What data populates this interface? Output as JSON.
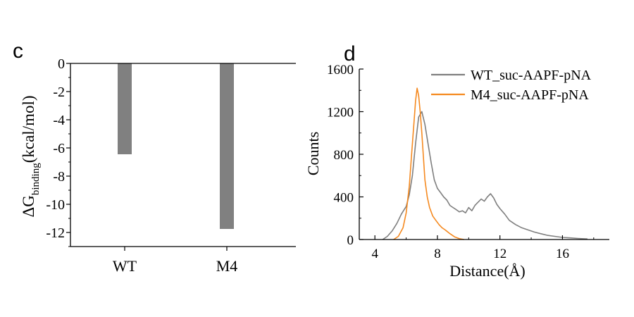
{
  "chart_data": [
    {
      "panel_label": "c",
      "type": "bar",
      "categories": [
        "WT",
        "M4"
      ],
      "values": [
        -6.45,
        -11.75
      ],
      "ylabel_main": "ΔG",
      "ylabel_sub": "binding",
      "ylabel_unit": "(kcal/mol)",
      "ylim": [
        -13,
        0
      ],
      "yticks": [
        0,
        -2,
        -4,
        -6,
        -8,
        -10,
        -12
      ],
      "ytick_labels": [
        "0",
        "-2",
        "-4",
        "-6",
        "-8",
        "-10",
        "-12"
      ],
      "bar_color": "#808080",
      "grid": false
    },
    {
      "panel_label": "d",
      "type": "line",
      "xlabel": "Distance(Å)",
      "ylabel": "Counts",
      "xlim": [
        3,
        19
      ],
      "ylim": [
        0,
        1600
      ],
      "xticks": [
        4,
        8,
        12,
        16
      ],
      "xtick_labels": [
        "4",
        "8",
        "12",
        "16"
      ],
      "yticks": [
        0,
        400,
        800,
        1200,
        1600
      ],
      "ytick_labels": [
        "0",
        "400",
        "800",
        "1200",
        "1600"
      ],
      "legend_position": "top-right",
      "grid": false,
      "series": [
        {
          "name": "WT_suc-AAPF-pNA",
          "color": "#7f7f7f",
          "x": [
            4.5,
            4.8,
            5.1,
            5.4,
            5.7,
            6.0,
            6.2,
            6.4,
            6.6,
            6.8,
            7.0,
            7.2,
            7.4,
            7.6,
            7.8,
            8.0,
            8.2,
            8.4,
            8.6,
            8.8,
            9.0,
            9.2,
            9.4,
            9.6,
            9.8,
            10.0,
            10.2,
            10.4,
            10.6,
            10.8,
            11.0,
            11.2,
            11.4,
            11.6,
            11.8,
            12.0,
            12.3,
            12.6,
            13.0,
            13.4,
            13.8,
            14.2,
            14.6,
            15.0,
            15.5,
            16.0,
            16.5,
            17.0,
            17.6
          ],
          "y": [
            0,
            30,
            80,
            150,
            240,
            310,
            420,
            600,
            900,
            1150,
            1200,
            1080,
            900,
            720,
            560,
            480,
            440,
            400,
            370,
            320,
            300,
            280,
            260,
            270,
            250,
            300,
            270,
            320,
            350,
            380,
            360,
            400,
            430,
            390,
            330,
            290,
            240,
            180,
            140,
            110,
            90,
            70,
            55,
            40,
            30,
            20,
            15,
            10,
            5
          ]
        },
        {
          "name": "M4_suc-AAPF-pNA",
          "color": "#f5891f",
          "x": [
            5.2,
            5.5,
            5.8,
            6.0,
            6.2,
            6.35,
            6.5,
            6.6,
            6.7,
            6.8,
            6.9,
            7.0,
            7.1,
            7.2,
            7.35,
            7.5,
            7.7,
            7.9,
            8.1,
            8.3,
            8.5,
            8.8,
            9.1,
            9.4,
            9.7
          ],
          "y": [
            0,
            30,
            110,
            250,
            500,
            800,
            1100,
            1300,
            1420,
            1350,
            1200,
            1000,
            780,
            560,
            400,
            300,
            220,
            180,
            140,
            110,
            90,
            55,
            25,
            8,
            0
          ]
        }
      ]
    }
  ]
}
